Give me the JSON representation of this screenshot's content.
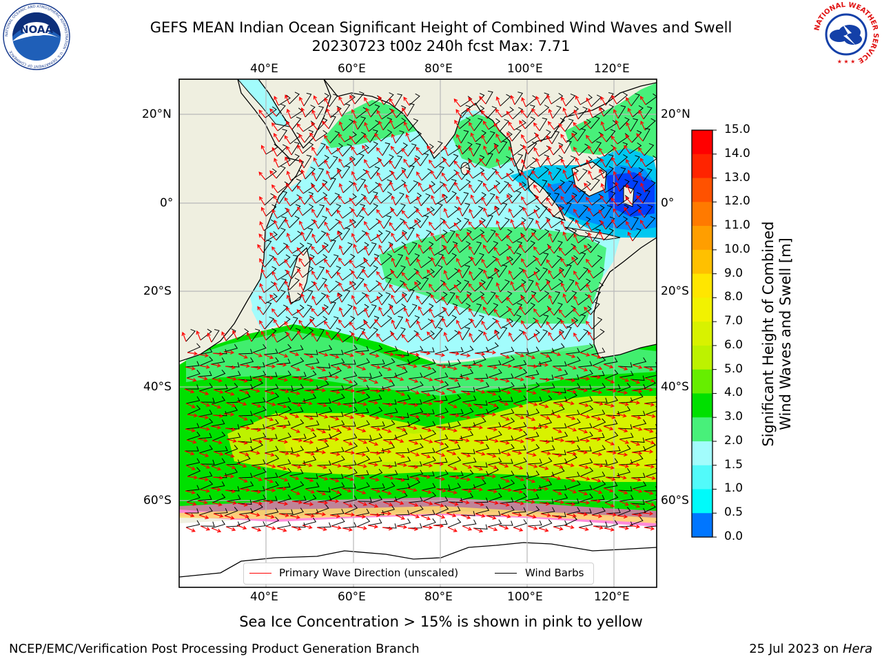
{
  "title": {
    "line1": "GEFS MEAN Indian Ocean Significant Height of Combined Wind Waves and Swell",
    "line2": "20230723 t00z 240h fcst   Max: 7.71"
  },
  "logos": {
    "noaa": "NOAA",
    "noaa_ring": "NATIONAL OCEANIC AND ATMOSPHERIC ADMINISTRATION · U.S. DEPARTMENT OF COMMERCE",
    "nws_ring": "NATIONAL WEATHER SERVICE"
  },
  "map": {
    "lon_labels": [
      "40°E",
      "60°E",
      "80°E",
      "100°E",
      "120°E"
    ],
    "lat_labels": [
      "20°N",
      "0°",
      "20°S",
      "40°S",
      "60°S"
    ]
  },
  "legend": {
    "wave_label": "Primary Wave Direction (unscaled)",
    "barb_label": "Wind Barbs",
    "wave_color": "#ff0000",
    "barb_color": "#000000"
  },
  "colorbar": {
    "label": "Significant Height of Combined Wind Waves and Swell [m]",
    "ticks": [
      "15.0",
      "14.0",
      "13.0",
      "12.0",
      "11.0",
      "10.0",
      "9.0",
      "8.0",
      "7.0",
      "6.0",
      "5.0",
      "4.0",
      "3.0",
      "2.0",
      "1.5",
      "1.0",
      "0.5",
      "0.0"
    ],
    "colors": [
      "#ff0000",
      "#ff2400",
      "#ff5200",
      "#ff7a00",
      "#ff9e00",
      "#ffc000",
      "#ffe600",
      "#f2f200",
      "#d8f200",
      "#bdf200",
      "#66ee00",
      "#00e000",
      "#48f07a",
      "#a2fcfc",
      "#52fafa",
      "#00fafa",
      "#0076ff",
      "#0000ff"
    ]
  },
  "footnote": "Sea Ice Concentration > 15% is shown in pink to yellow",
  "credits": {
    "left": "NCEP/EMC/Verification Post Processing Product Generation Branch",
    "right_prefix": "25 Jul 2023 on ",
    "right_host": "Hera"
  }
}
